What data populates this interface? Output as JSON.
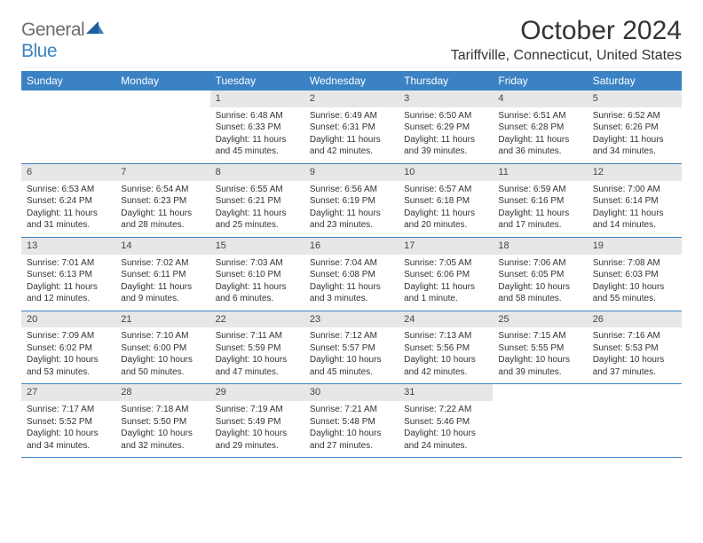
{
  "logo": {
    "text1": "General",
    "text2": "Blue"
  },
  "title": "October 2024",
  "location": "Tariffville, Connecticut, United States",
  "colors": {
    "header_bg": "#3b82c4",
    "daynum_bg": "#e7e7e7",
    "text": "#333333"
  },
  "day_names": [
    "Sunday",
    "Monday",
    "Tuesday",
    "Wednesday",
    "Thursday",
    "Friday",
    "Saturday"
  ],
  "weeks": [
    [
      {
        "n": "",
        "sr": "",
        "ss": "",
        "dl": ""
      },
      {
        "n": "",
        "sr": "",
        "ss": "",
        "dl": ""
      },
      {
        "n": "1",
        "sr": "Sunrise: 6:48 AM",
        "ss": "Sunset: 6:33 PM",
        "dl": "Daylight: 11 hours and 45 minutes."
      },
      {
        "n": "2",
        "sr": "Sunrise: 6:49 AM",
        "ss": "Sunset: 6:31 PM",
        "dl": "Daylight: 11 hours and 42 minutes."
      },
      {
        "n": "3",
        "sr": "Sunrise: 6:50 AM",
        "ss": "Sunset: 6:29 PM",
        "dl": "Daylight: 11 hours and 39 minutes."
      },
      {
        "n": "4",
        "sr": "Sunrise: 6:51 AM",
        "ss": "Sunset: 6:28 PM",
        "dl": "Daylight: 11 hours and 36 minutes."
      },
      {
        "n": "5",
        "sr": "Sunrise: 6:52 AM",
        "ss": "Sunset: 6:26 PM",
        "dl": "Daylight: 11 hours and 34 minutes."
      }
    ],
    [
      {
        "n": "6",
        "sr": "Sunrise: 6:53 AM",
        "ss": "Sunset: 6:24 PM",
        "dl": "Daylight: 11 hours and 31 minutes."
      },
      {
        "n": "7",
        "sr": "Sunrise: 6:54 AM",
        "ss": "Sunset: 6:23 PM",
        "dl": "Daylight: 11 hours and 28 minutes."
      },
      {
        "n": "8",
        "sr": "Sunrise: 6:55 AM",
        "ss": "Sunset: 6:21 PM",
        "dl": "Daylight: 11 hours and 25 minutes."
      },
      {
        "n": "9",
        "sr": "Sunrise: 6:56 AM",
        "ss": "Sunset: 6:19 PM",
        "dl": "Daylight: 11 hours and 23 minutes."
      },
      {
        "n": "10",
        "sr": "Sunrise: 6:57 AM",
        "ss": "Sunset: 6:18 PM",
        "dl": "Daylight: 11 hours and 20 minutes."
      },
      {
        "n": "11",
        "sr": "Sunrise: 6:59 AM",
        "ss": "Sunset: 6:16 PM",
        "dl": "Daylight: 11 hours and 17 minutes."
      },
      {
        "n": "12",
        "sr": "Sunrise: 7:00 AM",
        "ss": "Sunset: 6:14 PM",
        "dl": "Daylight: 11 hours and 14 minutes."
      }
    ],
    [
      {
        "n": "13",
        "sr": "Sunrise: 7:01 AM",
        "ss": "Sunset: 6:13 PM",
        "dl": "Daylight: 11 hours and 12 minutes."
      },
      {
        "n": "14",
        "sr": "Sunrise: 7:02 AM",
        "ss": "Sunset: 6:11 PM",
        "dl": "Daylight: 11 hours and 9 minutes."
      },
      {
        "n": "15",
        "sr": "Sunrise: 7:03 AM",
        "ss": "Sunset: 6:10 PM",
        "dl": "Daylight: 11 hours and 6 minutes."
      },
      {
        "n": "16",
        "sr": "Sunrise: 7:04 AM",
        "ss": "Sunset: 6:08 PM",
        "dl": "Daylight: 11 hours and 3 minutes."
      },
      {
        "n": "17",
        "sr": "Sunrise: 7:05 AM",
        "ss": "Sunset: 6:06 PM",
        "dl": "Daylight: 11 hours and 1 minute."
      },
      {
        "n": "18",
        "sr": "Sunrise: 7:06 AM",
        "ss": "Sunset: 6:05 PM",
        "dl": "Daylight: 10 hours and 58 minutes."
      },
      {
        "n": "19",
        "sr": "Sunrise: 7:08 AM",
        "ss": "Sunset: 6:03 PM",
        "dl": "Daylight: 10 hours and 55 minutes."
      }
    ],
    [
      {
        "n": "20",
        "sr": "Sunrise: 7:09 AM",
        "ss": "Sunset: 6:02 PM",
        "dl": "Daylight: 10 hours and 53 minutes."
      },
      {
        "n": "21",
        "sr": "Sunrise: 7:10 AM",
        "ss": "Sunset: 6:00 PM",
        "dl": "Daylight: 10 hours and 50 minutes."
      },
      {
        "n": "22",
        "sr": "Sunrise: 7:11 AM",
        "ss": "Sunset: 5:59 PM",
        "dl": "Daylight: 10 hours and 47 minutes."
      },
      {
        "n": "23",
        "sr": "Sunrise: 7:12 AM",
        "ss": "Sunset: 5:57 PM",
        "dl": "Daylight: 10 hours and 45 minutes."
      },
      {
        "n": "24",
        "sr": "Sunrise: 7:13 AM",
        "ss": "Sunset: 5:56 PM",
        "dl": "Daylight: 10 hours and 42 minutes."
      },
      {
        "n": "25",
        "sr": "Sunrise: 7:15 AM",
        "ss": "Sunset: 5:55 PM",
        "dl": "Daylight: 10 hours and 39 minutes."
      },
      {
        "n": "26",
        "sr": "Sunrise: 7:16 AM",
        "ss": "Sunset: 5:53 PM",
        "dl": "Daylight: 10 hours and 37 minutes."
      }
    ],
    [
      {
        "n": "27",
        "sr": "Sunrise: 7:17 AM",
        "ss": "Sunset: 5:52 PM",
        "dl": "Daylight: 10 hours and 34 minutes."
      },
      {
        "n": "28",
        "sr": "Sunrise: 7:18 AM",
        "ss": "Sunset: 5:50 PM",
        "dl": "Daylight: 10 hours and 32 minutes."
      },
      {
        "n": "29",
        "sr": "Sunrise: 7:19 AM",
        "ss": "Sunset: 5:49 PM",
        "dl": "Daylight: 10 hours and 29 minutes."
      },
      {
        "n": "30",
        "sr": "Sunrise: 7:21 AM",
        "ss": "Sunset: 5:48 PM",
        "dl": "Daylight: 10 hours and 27 minutes."
      },
      {
        "n": "31",
        "sr": "Sunrise: 7:22 AM",
        "ss": "Sunset: 5:46 PM",
        "dl": "Daylight: 10 hours and 24 minutes."
      },
      {
        "n": "",
        "sr": "",
        "ss": "",
        "dl": ""
      },
      {
        "n": "",
        "sr": "",
        "ss": "",
        "dl": ""
      }
    ]
  ]
}
